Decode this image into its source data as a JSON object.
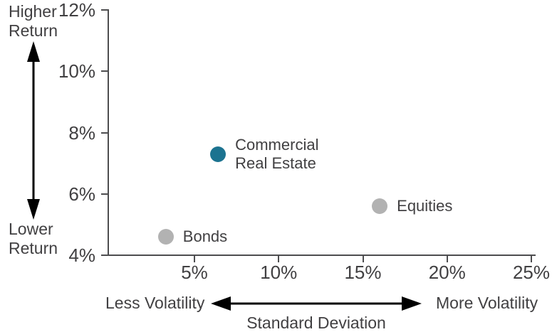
{
  "colors": {
    "accent_teal": "#1C7390",
    "dot_gray": "#B2B2B2",
    "text": "#414042",
    "axis": "#4D4D4F",
    "arrow": "#000000"
  },
  "chart_data": {
    "type": "scatter",
    "title": "",
    "xlabel": "Standard Deviation",
    "ylabel": "",
    "x_axis": {
      "range": [
        0,
        25
      ],
      "ticks": [
        {
          "value": 5,
          "label": "5%"
        },
        {
          "value": 10,
          "label": "10%"
        },
        {
          "value": 15,
          "label": "15%"
        },
        {
          "value": 20,
          "label": "20%"
        },
        {
          "value": 25,
          "label": "25%"
        }
      ]
    },
    "y_axis": {
      "range": [
        4,
        12
      ],
      "ticks": [
        {
          "value": 4,
          "label": "4%"
        },
        {
          "value": 6,
          "label": "6%"
        },
        {
          "value": 8,
          "label": "8%"
        },
        {
          "value": 10,
          "label": "10%"
        },
        {
          "value": 12,
          "label": "12%"
        }
      ]
    },
    "points": [
      {
        "name": "commercial-real-estate",
        "label": "Commercial\nReal Estate",
        "x": 6.4,
        "y": 7.3,
        "color": "#1C7390"
      },
      {
        "name": "equities",
        "label": "Equities",
        "x": 16,
        "y": 5.6,
        "color": "#B2B2B2"
      },
      {
        "name": "bonds",
        "label": "Bonds",
        "x": 3.3,
        "y": 4.6,
        "color": "#B2B2B2"
      }
    ],
    "annotations": {
      "higher_return": "Higher\nReturn",
      "lower_return": "Lower\nReturn",
      "less_volatility": "Less Volatility",
      "more_volatility": "More Volatility",
      "x_axis_title": "Standard Deviation"
    }
  }
}
